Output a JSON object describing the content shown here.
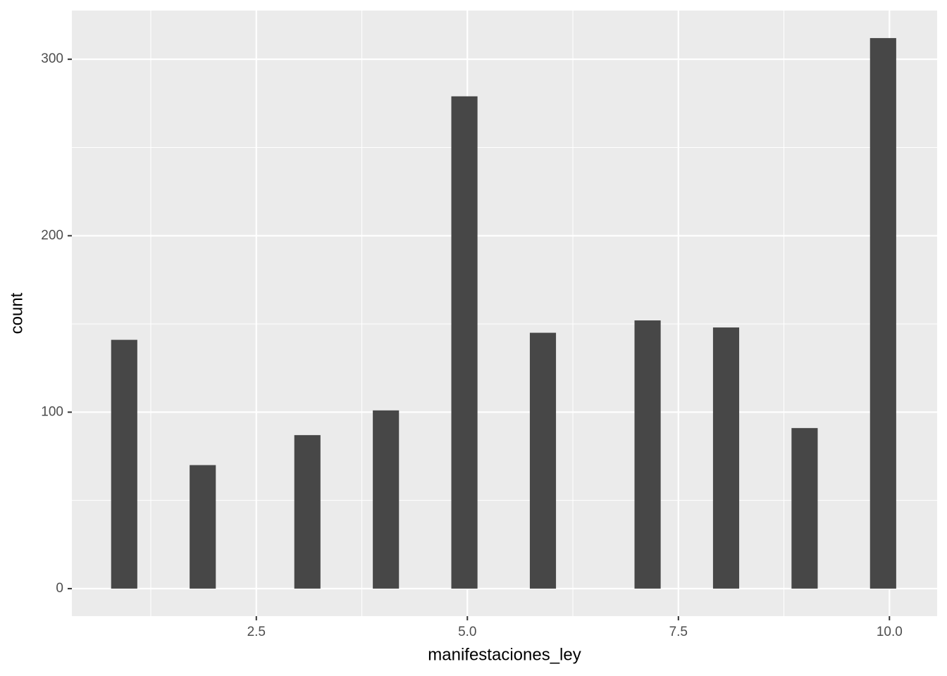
{
  "chart_data": {
    "type": "histogram",
    "xlabel": "manifestaciones_ley",
    "ylabel": "count",
    "bins": [
      0.78,
      1.09,
      1.4,
      1.71,
      2.02,
      2.33,
      2.64,
      2.95,
      3.26,
      3.57,
      3.88,
      4.19,
      4.5,
      4.81,
      5.12,
      5.43,
      5.74,
      6.05,
      6.36,
      6.67,
      6.98,
      7.29,
      7.6,
      7.91,
      8.22,
      8.53,
      8.84,
      9.15,
      9.46,
      9.77,
      10.08
    ],
    "values": [
      141,
      0,
      0,
      70,
      0,
      0,
      0,
      87,
      0,
      0,
      101,
      0,
      0,
      279,
      0,
      0,
      145,
      0,
      0,
      0,
      152,
      0,
      0,
      148,
      0,
      0,
      91,
      0,
      0,
      312
    ],
    "color": "#474747",
    "xlim": [
      0.315,
      10.565
    ],
    "ylim": [
      -15.6,
      327.6
    ],
    "xticks": [
      {
        "value": 2.5,
        "label": "2.5"
      },
      {
        "value": 5,
        "label": "5.0"
      },
      {
        "value": 7.5,
        "label": "7.5"
      },
      {
        "value": 10,
        "label": "10.0"
      }
    ],
    "yticks": [
      0,
      100,
      200,
      300
    ],
    "grid": true
  }
}
